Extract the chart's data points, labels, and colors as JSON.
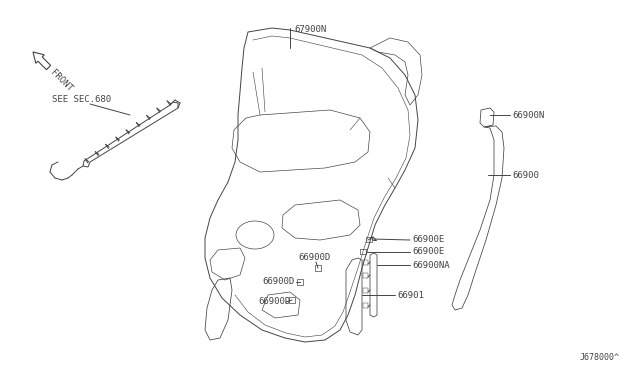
{
  "bg_color": "#ffffff",
  "line_color": "#444444",
  "text_color": "#444444",
  "diagram_id": "J678000^",
  "labels": {
    "front_arrow": "FRONT",
    "see_sec": "SEE SEC.680",
    "part_67900N": "67900N",
    "part_66900N_top": "66900N",
    "part_66900": "66900",
    "part_66900E_1": "66900E",
    "part_66900E_2": "66900E",
    "part_66900NA": "66900NA",
    "part_66900D_1": "66900D",
    "part_66900D_2": "66900D",
    "part_66900D_3": "66900D",
    "part_66901": "66901"
  }
}
